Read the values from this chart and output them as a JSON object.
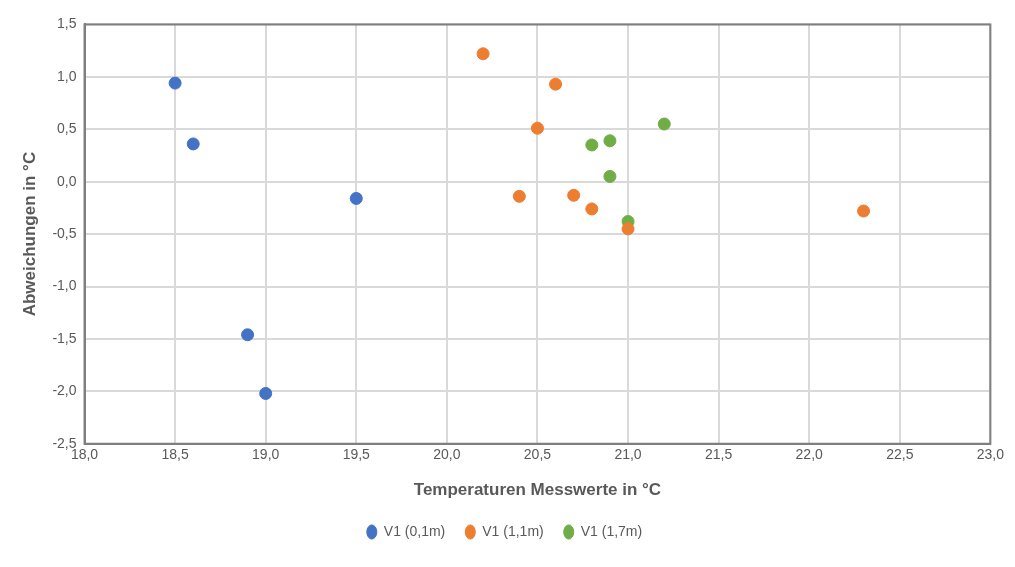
{
  "chart_data": {
    "type": "scatter",
    "xlabel": "Temperaturen Messwerte in °C",
    "ylabel": "Abweichungen in °C",
    "xlim": [
      18,
      23
    ],
    "ylim": [
      -2.5,
      1.5
    ],
    "xticks": [
      {
        "value": 18,
        "label": "18,0"
      },
      {
        "value": 18.5,
        "label": "18,5"
      },
      {
        "value": 19,
        "label": "19,0"
      },
      {
        "value": 19.5,
        "label": "19,5"
      },
      {
        "value": 20,
        "label": "20,0"
      },
      {
        "value": 20.5,
        "label": "20,5"
      },
      {
        "value": 21,
        "label": "21,0"
      },
      {
        "value": 21.5,
        "label": "21,5"
      },
      {
        "value": 22,
        "label": "22,0"
      },
      {
        "value": 22.5,
        "label": "22,5"
      },
      {
        "value": 23,
        "label": "23,0"
      }
    ],
    "yticks": [
      {
        "value": -2.5,
        "label": "-2,5"
      },
      {
        "value": -2,
        "label": "-2,0"
      },
      {
        "value": -1.5,
        "label": "-1,5"
      },
      {
        "value": -1,
        "label": "-1,0"
      },
      {
        "value": -0.5,
        "label": "-0,5"
      },
      {
        "value": 0,
        "label": "0,0"
      },
      {
        "value": 0.5,
        "label": "0,5"
      },
      {
        "value": 1,
        "label": "1,0"
      },
      {
        "value": 1.5,
        "label": "1,5"
      }
    ],
    "grid": true,
    "legend": "bottom",
    "marker": "circle",
    "series": [
      {
        "name": "V1 (0,1m)",
        "color": "#4472c4",
        "x": [
          18.5,
          18.6,
          19.5,
          18.9,
          19.0
        ],
        "values": [
          0.94,
          0.36,
          -0.16,
          -1.46,
          -2.02
        ]
      },
      {
        "name": "V1 (1,1m)",
        "color": "#ed7d31",
        "x": [
          20.2,
          20.6,
          20.5,
          20.4,
          20.7,
          20.8,
          21.0,
          22.3
        ],
        "values": [
          1.22,
          0.93,
          0.51,
          -0.14,
          -0.13,
          -0.26,
          -0.45,
          -0.28
        ]
      },
      {
        "name": "V1 (1,7m)",
        "color": "#70ad47",
        "x": [
          21.2,
          20.9,
          20.8,
          20.9,
          21.0
        ],
        "values": [
          0.55,
          0.39,
          0.35,
          0.05,
          -0.38
        ]
      }
    ]
  }
}
